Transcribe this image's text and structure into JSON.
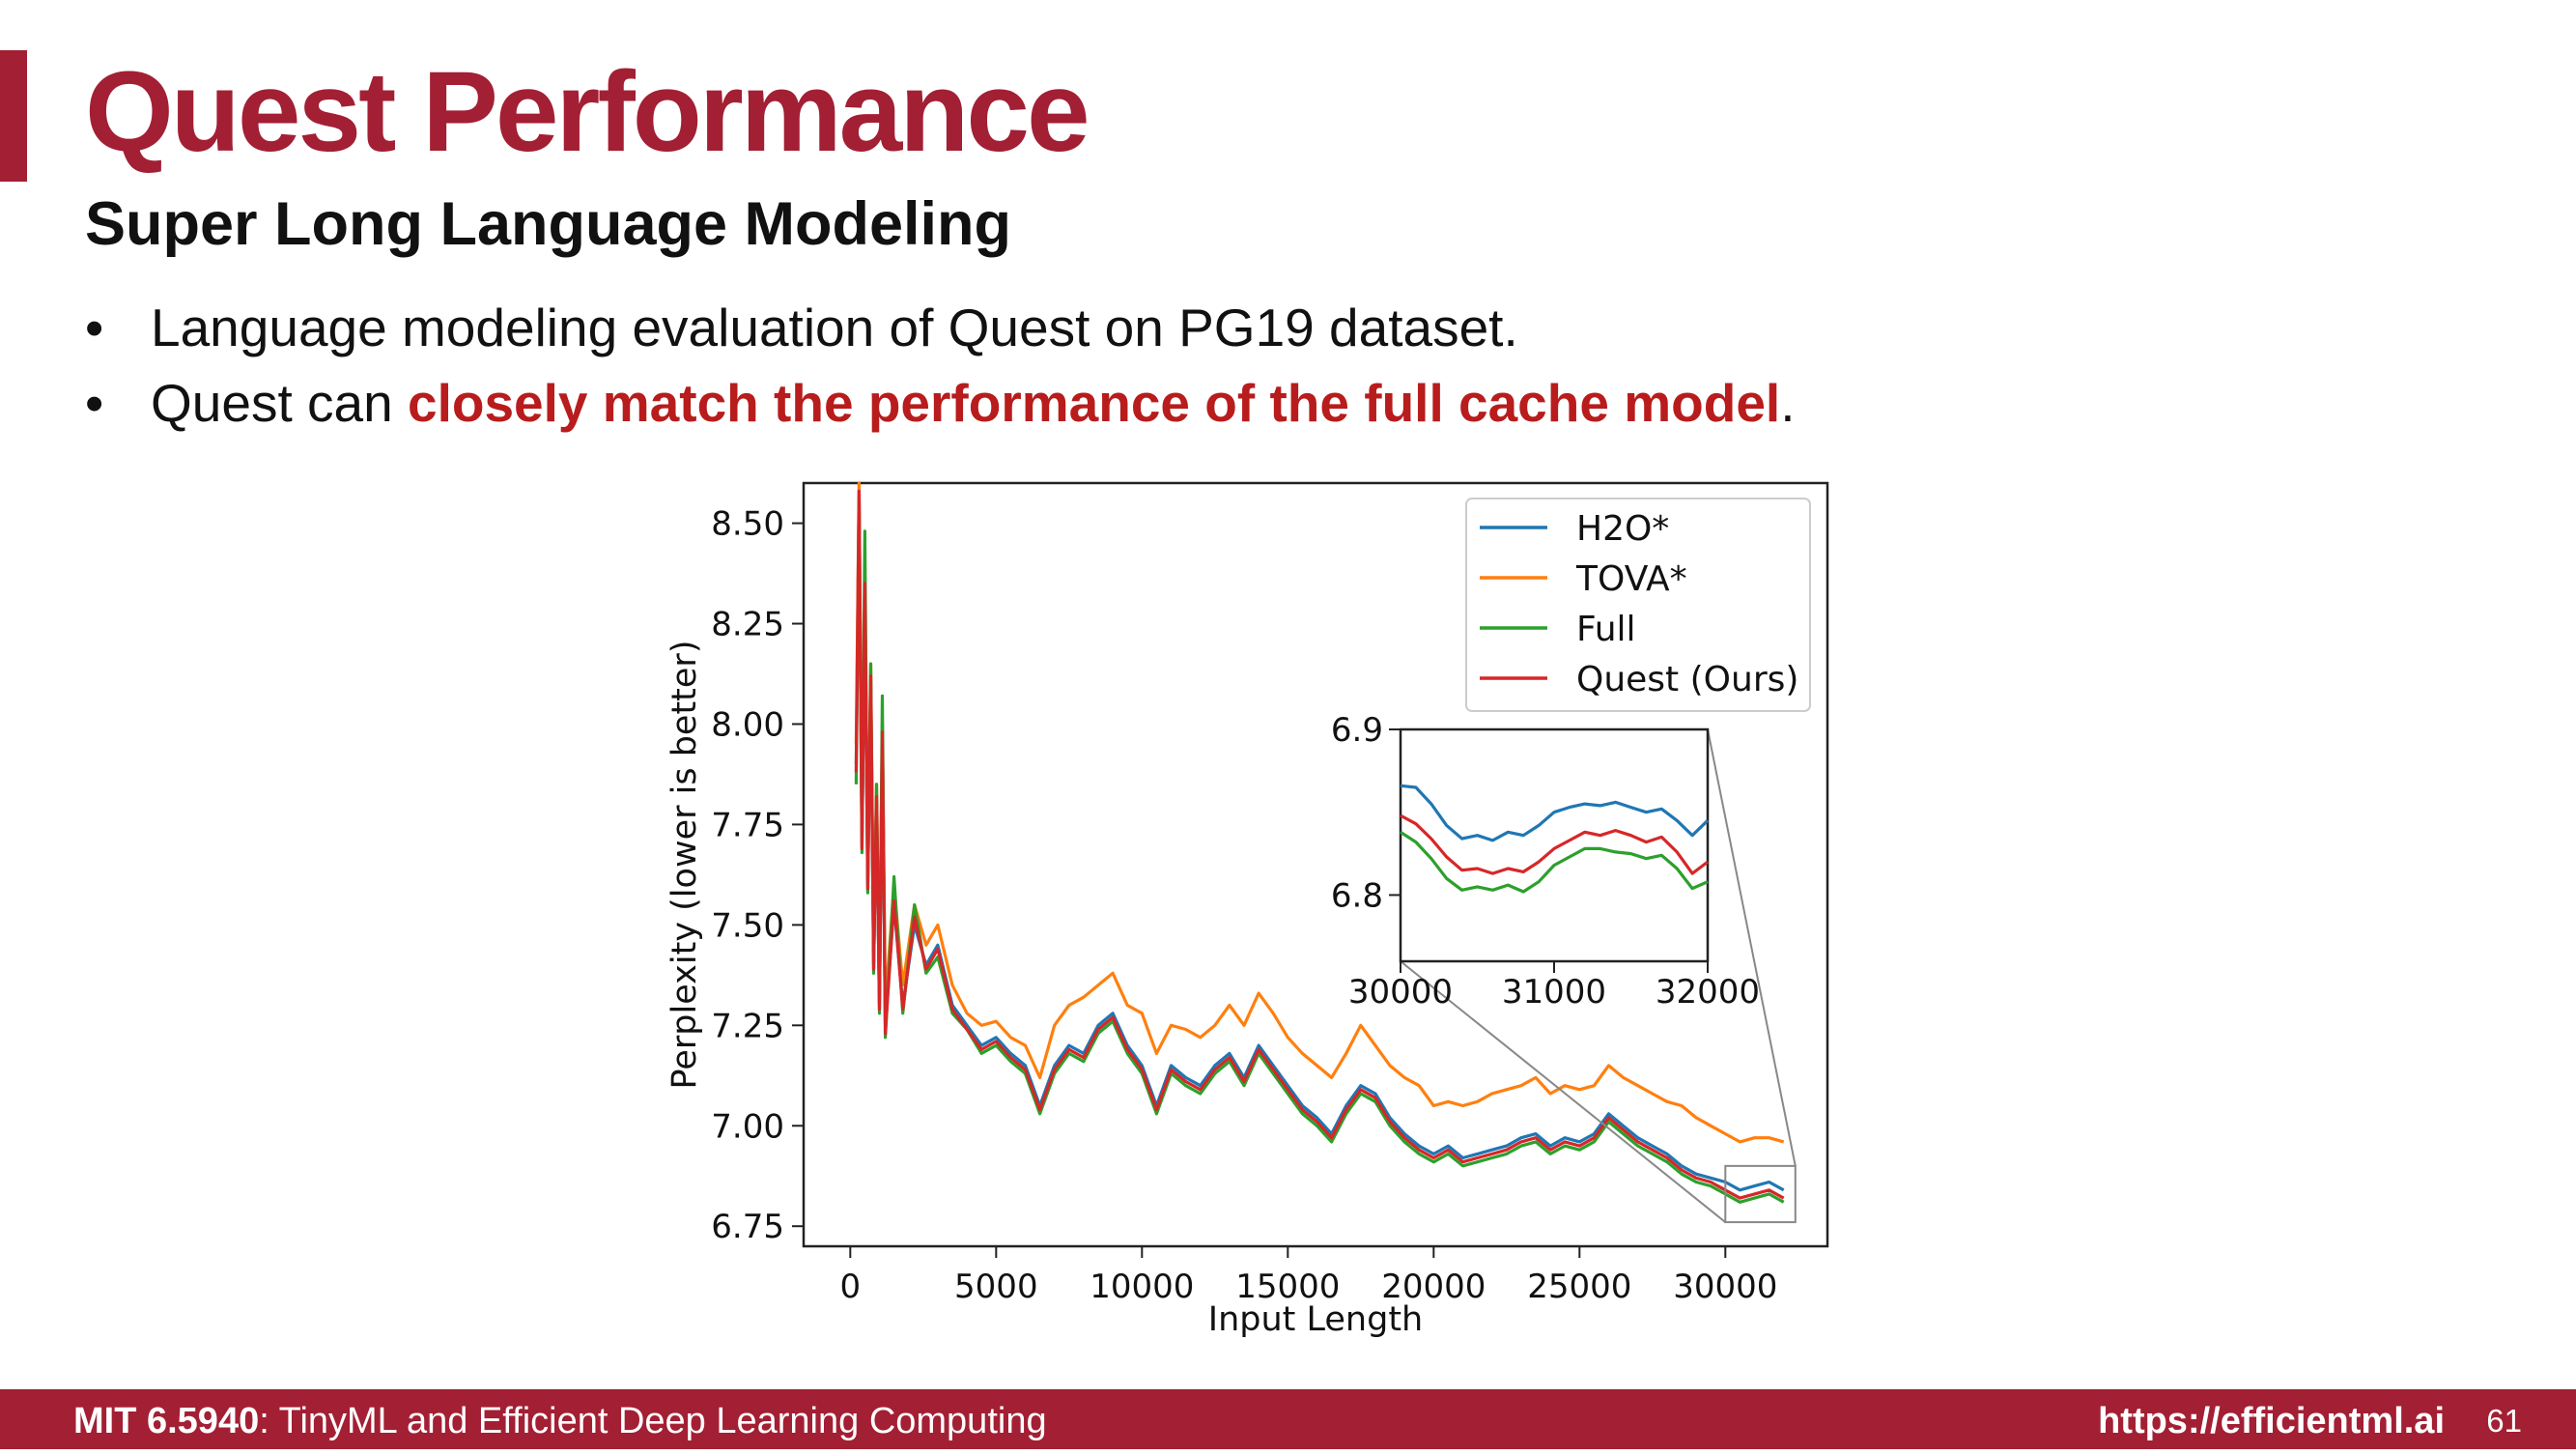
{
  "slide": {
    "title": "Quest Performance",
    "subtitle": "Super Long Language Modeling",
    "bullets": [
      {
        "text": "Language modeling evaluation of Quest on PG19 dataset."
      },
      {
        "pre": "Quest can ",
        "highlight": "closely match the performance of the full cache model",
        "post": "."
      }
    ],
    "bullet_symbol": "•"
  },
  "footer": {
    "course_code": "MIT 6.5940",
    "course_rest": ": TinyML and Efficient Deep Learning Computing",
    "url": "https://efficientml.ai",
    "page": "61"
  },
  "colors": {
    "accent": "#a31f34",
    "highlight": "#b81c1c",
    "h2o": "#1f77b4",
    "tova": "#ff7f0e",
    "full": "#2ca02c",
    "quest": "#d62728"
  },
  "chart_data": {
    "type": "line",
    "title": "",
    "xlabel": "Input Length",
    "ylabel": "Perplexity (lower is better)",
    "xlim": [
      -1600,
      33500
    ],
    "ylim": [
      6.7,
      8.6
    ],
    "xticks": [
      0,
      5000,
      10000,
      15000,
      20000,
      25000,
      30000
    ],
    "yticks": [
      6.75,
      7.0,
      7.25,
      7.5,
      7.75,
      8.0,
      8.25,
      8.5
    ],
    "ytick_labels": [
      "6.75",
      "7.00",
      "7.25",
      "7.50",
      "7.75",
      "8.00",
      "8.25",
      "8.50"
    ],
    "grid": false,
    "legend": "top-right",
    "series": [
      {
        "name": "H2O*",
        "color": "#1f77b4",
        "x": [
          200,
          300,
          400,
          500,
          600,
          700,
          800,
          900,
          1000,
          1100,
          1200,
          1500,
          1800,
          2200,
          2600,
          3000,
          3500,
          4000,
          4500,
          5000,
          5500,
          6000,
          6500,
          7000,
          7500,
          8000,
          8500,
          9000,
          9500,
          10000,
          10500,
          11000,
          11500,
          12000,
          12500,
          13000,
          13500,
          14000,
          14500,
          15000,
          15500,
          16000,
          16500,
          17000,
          17500,
          18000,
          18500,
          19000,
          19500,
          20000,
          20500,
          21000,
          21500,
          22000,
          22500,
          23000,
          23500,
          24000,
          24500,
          25000,
          25500,
          26000,
          26500,
          27000,
          27500,
          28000,
          28500,
          29000,
          29500,
          30000,
          30500,
          31000,
          31500,
          32000
        ],
        "y": [
          7.9,
          8.58,
          7.7,
          8.3,
          7.6,
          8.1,
          7.4,
          7.8,
          7.3,
          7.95,
          7.25,
          7.55,
          7.3,
          7.5,
          7.4,
          7.45,
          7.3,
          7.25,
          7.2,
          7.22,
          7.18,
          7.15,
          7.05,
          7.15,
          7.2,
          7.18,
          7.25,
          7.28,
          7.2,
          7.15,
          7.05,
          7.15,
          7.12,
          7.1,
          7.15,
          7.18,
          7.12,
          7.2,
          7.15,
          7.1,
          7.05,
          7.02,
          6.98,
          7.05,
          7.1,
          7.08,
          7.02,
          6.98,
          6.95,
          6.93,
          6.95,
          6.92,
          6.93,
          6.94,
          6.95,
          6.97,
          6.98,
          6.95,
          6.97,
          6.96,
          6.98,
          7.03,
          7.0,
          6.97,
          6.95,
          6.93,
          6.9,
          6.88,
          6.87,
          6.86,
          6.84,
          6.85,
          6.86,
          6.84
        ]
      },
      {
        "name": "TOVA*",
        "color": "#ff7f0e",
        "x": [
          200,
          300,
          400,
          500,
          600,
          700,
          800,
          900,
          1000,
          1100,
          1200,
          1500,
          1800,
          2200,
          2600,
          3000,
          3500,
          4000,
          4500,
          5000,
          5500,
          6000,
          6500,
          7000,
          7500,
          8000,
          8500,
          9000,
          9500,
          10000,
          10500,
          11000,
          11500,
          12000,
          12500,
          13000,
          13500,
          14000,
          14500,
          15000,
          15500,
          16000,
          16500,
          17000,
          17500,
          18000,
          18500,
          19000,
          19500,
          20000,
          20500,
          21000,
          21500,
          22000,
          22500,
          23000,
          23500,
          24000,
          24500,
          25000,
          25500,
          26000,
          26500,
          27000,
          27500,
          28000,
          28500,
          29000,
          29500,
          30000,
          30500,
          31000,
          31500,
          32000
        ],
        "y": [
          7.95,
          8.6,
          7.75,
          8.35,
          7.65,
          8.15,
          7.45,
          7.85,
          7.35,
          8.0,
          7.3,
          7.6,
          7.35,
          7.55,
          7.45,
          7.5,
          7.35,
          7.28,
          7.25,
          7.26,
          7.22,
          7.2,
          7.12,
          7.25,
          7.3,
          7.32,
          7.35,
          7.38,
          7.3,
          7.28,
          7.18,
          7.25,
          7.24,
          7.22,
          7.25,
          7.3,
          7.25,
          7.33,
          7.28,
          7.22,
          7.18,
          7.15,
          7.12,
          7.18,
          7.25,
          7.2,
          7.15,
          7.12,
          7.1,
          7.05,
          7.06,
          7.05,
          7.06,
          7.08,
          7.09,
          7.1,
          7.12,
          7.08,
          7.1,
          7.09,
          7.1,
          7.15,
          7.12,
          7.1,
          7.08,
          7.06,
          7.05,
          7.02,
          7.0,
          6.98,
          6.96,
          6.97,
          6.97,
          6.96
        ]
      },
      {
        "name": "Full",
        "color": "#2ca02c",
        "x": [
          200,
          300,
          400,
          500,
          600,
          700,
          800,
          900,
          1000,
          1100,
          1200,
          1500,
          1800,
          2200,
          2600,
          3000,
          3500,
          4000,
          4500,
          5000,
          5500,
          6000,
          6500,
          7000,
          7500,
          8000,
          8500,
          9000,
          9500,
          10000,
          10500,
          11000,
          11500,
          12000,
          12500,
          13000,
          13500,
          14000,
          14500,
          15000,
          15500,
          16000,
          16500,
          17000,
          17500,
          18000,
          18500,
          19000,
          19500,
          20000,
          20500,
          21000,
          21500,
          22000,
          22500,
          23000,
          23500,
          24000,
          24500,
          25000,
          25500,
          26000,
          26500,
          27000,
          27500,
          28000,
          28500,
          29000,
          29500,
          30000,
          30500,
          31000,
          31500,
          32000
        ],
        "y": [
          7.85,
          8.55,
          7.68,
          8.48,
          7.58,
          8.15,
          7.38,
          7.85,
          7.28,
          8.07,
          7.22,
          7.62,
          7.28,
          7.55,
          7.38,
          7.42,
          7.28,
          7.24,
          7.18,
          7.2,
          7.16,
          7.13,
          7.03,
          7.13,
          7.18,
          7.16,
          7.23,
          7.26,
          7.18,
          7.13,
          7.03,
          7.13,
          7.1,
          7.08,
          7.13,
          7.16,
          7.1,
          7.18,
          7.13,
          7.08,
          7.03,
          7.0,
          6.96,
          7.03,
          7.08,
          7.06,
          7.0,
          6.96,
          6.93,
          6.91,
          6.93,
          6.9,
          6.91,
          6.92,
          6.93,
          6.95,
          6.96,
          6.93,
          6.95,
          6.94,
          6.96,
          7.01,
          6.98,
          6.95,
          6.93,
          6.91,
          6.88,
          6.86,
          6.85,
          6.83,
          6.81,
          6.82,
          6.83,
          6.81
        ]
      },
      {
        "name": "Quest (Ours)",
        "color": "#d62728",
        "x": [
          200,
          300,
          400,
          500,
          600,
          700,
          800,
          900,
          1000,
          1100,
          1200,
          1500,
          1800,
          2200,
          2600,
          3000,
          3500,
          4000,
          4500,
          5000,
          5500,
          6000,
          6500,
          7000,
          7500,
          8000,
          8500,
          9000,
          9500,
          10000,
          10500,
          11000,
          11500,
          12000,
          12500,
          13000,
          13500,
          14000,
          14500,
          15000,
          15500,
          16000,
          16500,
          17000,
          17500,
          18000,
          18500,
          19000,
          19500,
          20000,
          20500,
          21000,
          21500,
          22000,
          22500,
          23000,
          23500,
          24000,
          24500,
          25000,
          25500,
          26000,
          26500,
          27000,
          27500,
          28000,
          28500,
          29000,
          29500,
          30000,
          30500,
          31000,
          31500,
          32000
        ],
        "y": [
          7.88,
          8.58,
          7.69,
          8.35,
          7.59,
          8.12,
          7.39,
          7.82,
          7.29,
          7.98,
          7.23,
          7.56,
          7.29,
          7.52,
          7.39,
          7.44,
          7.29,
          7.24,
          7.19,
          7.21,
          7.17,
          7.14,
          7.04,
          7.14,
          7.19,
          7.17,
          7.24,
          7.27,
          7.19,
          7.14,
          7.04,
          7.14,
          7.11,
          7.09,
          7.14,
          7.17,
          7.11,
          7.19,
          7.14,
          7.09,
          7.04,
          7.01,
          6.97,
          7.04,
          7.09,
          7.07,
          7.01,
          6.97,
          6.94,
          6.92,
          6.94,
          6.91,
          6.92,
          6.93,
          6.94,
          6.96,
          6.97,
          6.94,
          6.96,
          6.95,
          6.97,
          7.02,
          6.99,
          6.96,
          6.94,
          6.92,
          6.89,
          6.87,
          6.86,
          6.84,
          6.82,
          6.83,
          6.84,
          6.82
        ]
      }
    ],
    "inset": {
      "xlim": [
        30000,
        32000
      ],
      "ylim": [
        6.76,
        6.9
      ],
      "xticks": [
        30000,
        31000,
        32000
      ],
      "yticks": [
        6.8,
        6.9
      ],
      "ytick_labels": [
        "6.8",
        "6.9"
      ],
      "series": [
        {
          "name": "H2O*",
          "color": "#1f77b4",
          "x": [
            30000,
            30100,
            30200,
            30300,
            30400,
            30500,
            30600,
            30700,
            30800,
            30900,
            31000,
            31100,
            31200,
            31300,
            31400,
            31500,
            31600,
            31700,
            31800,
            31900,
            32000
          ],
          "y": [
            6.866,
            6.865,
            6.855,
            6.842,
            6.834,
            6.836,
            6.833,
            6.838,
            6.836,
            6.842,
            6.85,
            6.853,
            6.855,
            6.854,
            6.856,
            6.853,
            6.85,
            6.852,
            6.845,
            6.836,
            6.845
          ]
        },
        {
          "name": "Full",
          "color": "#2ca02c",
          "x": [
            30000,
            30100,
            30200,
            30300,
            30400,
            30500,
            30600,
            30700,
            30800,
            30900,
            31000,
            31100,
            31200,
            31300,
            31400,
            31500,
            31600,
            31700,
            31800,
            31900,
            32000
          ],
          "y": [
            6.838,
            6.832,
            6.822,
            6.81,
            6.803,
            6.805,
            6.803,
            6.806,
            6.802,
            6.808,
            6.818,
            6.823,
            6.828,
            6.828,
            6.826,
            6.825,
            6.822,
            6.824,
            6.816,
            6.804,
            6.808
          ]
        },
        {
          "name": "Quest (Ours)",
          "color": "#d62728",
          "x": [
            30000,
            30100,
            30200,
            30300,
            30400,
            30500,
            30600,
            30700,
            30800,
            30900,
            31000,
            31100,
            31200,
            31300,
            31400,
            31500,
            31600,
            31700,
            31800,
            31900,
            32000
          ],
          "y": [
            6.848,
            6.843,
            6.834,
            6.823,
            6.815,
            6.816,
            6.813,
            6.816,
            6.814,
            6.82,
            6.828,
            6.833,
            6.838,
            6.836,
            6.839,
            6.836,
            6.832,
            6.835,
            6.826,
            6.813,
            6.82
          ]
        }
      ]
    }
  }
}
